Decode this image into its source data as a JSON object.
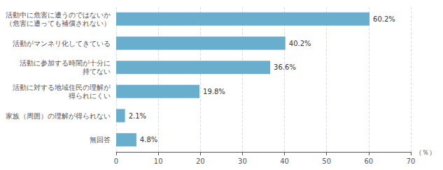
{
  "chart_data": {
    "type": "bar",
    "orientation": "horizontal",
    "categories": [
      "活動中に危害に遭うのではないか\n（危害に遭っても補償されない）",
      "活動がマンネリ化してきている",
      "活動に参加する時間が十分に\n持てない",
      "活動に対する地域住民の理解が\n得られにくい",
      "家族（周囲）の理解が得られない",
      "無回答"
    ],
    "values": [
      60.2,
      40.2,
      36.6,
      19.8,
      2.1,
      4.8
    ],
    "value_labels": [
      "60.2%",
      "40.2%",
      "36.6%",
      "19.8%",
      "2.1%",
      "4.8%"
    ],
    "data_labels": true,
    "color": "#6aaece",
    "xlim": [
      0,
      70
    ],
    "xticks": [
      0,
      10,
      20,
      30,
      40,
      50,
      60,
      70
    ],
    "xlabel": "（％）",
    "grid": true
  }
}
